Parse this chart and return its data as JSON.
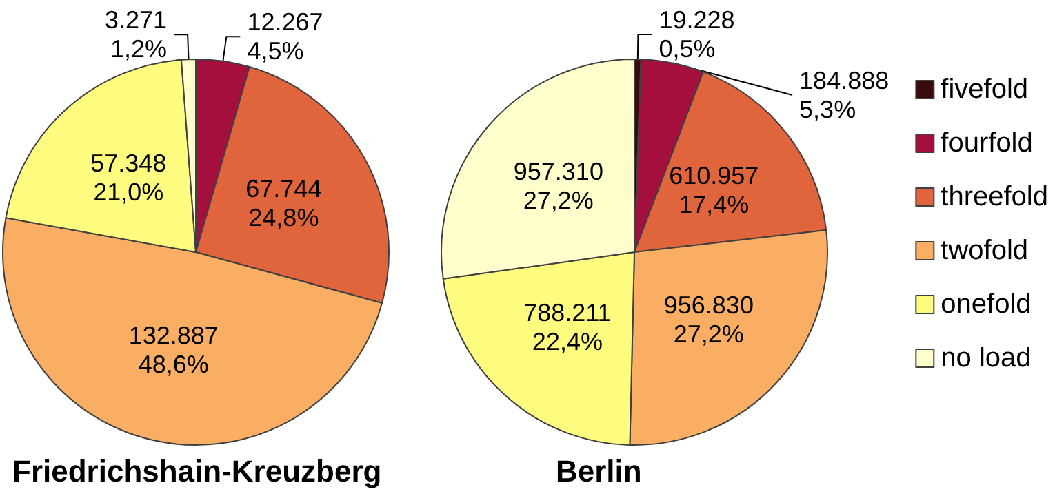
{
  "chart_data": [
    {
      "type": "pie",
      "title": "Friedrichshain-Kreuzberg",
      "categories": [
        null,
        null,
        null,
        null,
        null
      ],
      "values": [
        12267,
        67744,
        132887,
        57348,
        3271
      ],
      "colors": [
        "#a50f3e",
        "#e0643c",
        "#f9ae64",
        "#fefc7e",
        "#ffffcc"
      ],
      "value_labels": [
        "12.267\n4,5%",
        "67.744\n24,8%",
        "132.887\n48,6%",
        "57.348\n21,0%",
        "3.271\n1,2%"
      ]
    },
    {
      "type": "pie",
      "title": "Berlin",
      "categories": [
        "fivefold",
        "fourfold",
        "threefold",
        "twofold",
        "onefold",
        "no load"
      ],
      "values": [
        19228,
        184888,
        610957,
        956830,
        788211,
        957310
      ],
      "colors": [
        "#3b0a0a",
        "#a50f3e",
        "#e0643c",
        "#f9ae64",
        "#fefc7e",
        "#ffffcc"
      ],
      "value_labels": [
        "19.228\n0,5%",
        "184.888\n5,3%",
        "610.957\n17,4%",
        "956.830\n27,2%",
        "788.211\n22,4%",
        "957.310\n27,2%"
      ],
      "legend": "right"
    }
  ]
}
